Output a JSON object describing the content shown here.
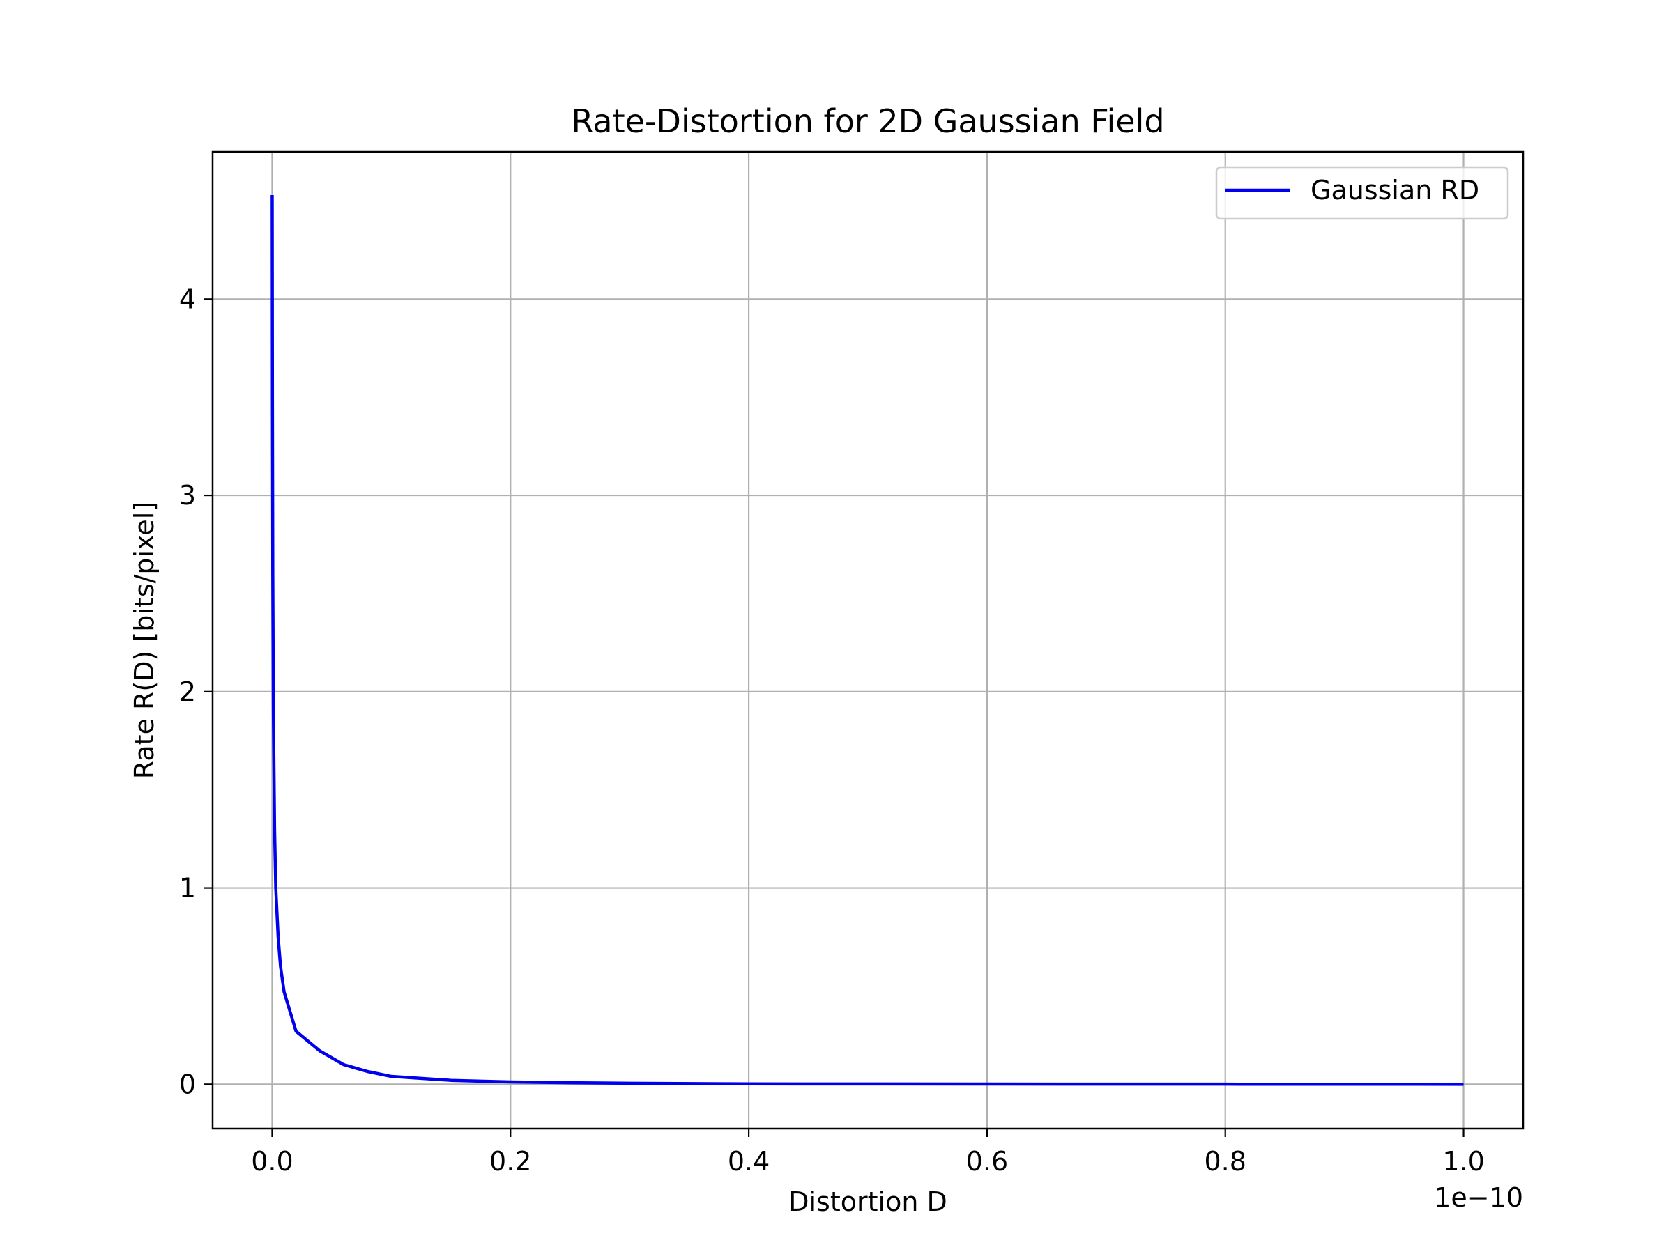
{
  "chart_data": {
    "type": "line",
    "title": "Rate-Distortion for 2D Gaussian Field",
    "xlabel": "Distortion D",
    "ylabel": "Rate R(D) [bits/pixel]",
    "x_offset_label": "1e−10",
    "xlim": [
      -5e-12,
      1.05e-10
    ],
    "ylim": [
      -0.226,
      4.75
    ],
    "xticks": [
      0.0,
      0.2,
      0.4,
      0.6,
      0.8,
      1.0
    ],
    "xtick_labels": [
      "0.0",
      "0.2",
      "0.4",
      "0.6",
      "0.8",
      "1.0"
    ],
    "yticks": [
      0,
      1,
      2,
      3,
      4
    ],
    "ytick_labels": [
      "0",
      "1",
      "2",
      "3",
      "4"
    ],
    "x_scale_factor": 1e-10,
    "grid": true,
    "legend_position": "upper right",
    "series": [
      {
        "name": "Gaussian RD",
        "color": "#0000ee",
        "x": [
          1e-15,
          2e-14,
          5e-14,
          1e-13,
          2e-13,
          3e-13,
          5e-13,
          7e-13,
          1e-12,
          2e-12,
          4e-12,
          6e-12,
          8e-12,
          1e-11,
          1.5e-11,
          2e-11,
          2.5e-11,
          3e-11,
          4e-11,
          6e-11,
          8e-11,
          1e-10
        ],
        "y": [
          4.53,
          3.5,
          2.6,
          1.9,
          1.3,
          1.0,
          0.75,
          0.6,
          0.47,
          0.27,
          0.17,
          0.1,
          0.065,
          0.04,
          0.02,
          0.012,
          0.008,
          0.005,
          0.002,
          0.001,
          0.0005,
          0.0
        ]
      }
    ]
  }
}
